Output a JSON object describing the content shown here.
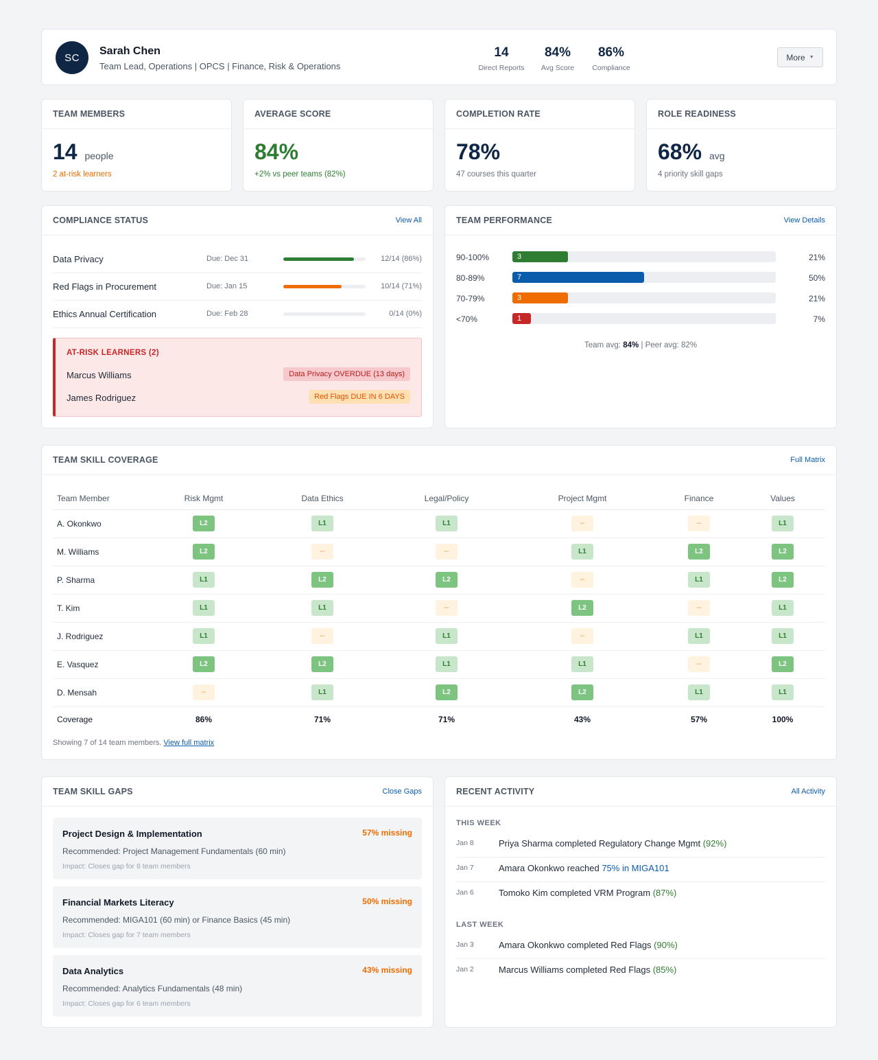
{
  "profile": {
    "initials": "SC",
    "name": "Sarah Chen",
    "role": "Team Lead, Operations | OPCS | Finance, Risk & Operations",
    "stats": [
      {
        "value": "14",
        "label": "Direct Reports"
      },
      {
        "value": "84%",
        "label": "Avg Score"
      },
      {
        "value": "86%",
        "label": "Compliance"
      }
    ],
    "more_label": "More",
    "more_caret": "▼"
  },
  "kpis": [
    {
      "title": "Team Members",
      "value": "14",
      "unit": "people",
      "sub": "2 at-risk learners",
      "value_color": "#0f2745",
      "sub_color": "#ef6c00"
    },
    {
      "title": "Average Score",
      "value": "84%",
      "unit": "",
      "sub": "+2% vs peer teams (82%)",
      "value_color": "#2e7d32",
      "sub_color": "#2e7d32"
    },
    {
      "title": "Completion Rate",
      "value": "78%",
      "unit": "",
      "sub": "47 courses this quarter",
      "value_color": "#0f2745",
      "sub_color": "#6b7280"
    },
    {
      "title": "Role Readiness",
      "value": "68%",
      "unit": "avg",
      "sub": "4 priority skill gaps",
      "value_color": "#0f2745",
      "sub_color": "#6b7280"
    }
  ],
  "compliance": {
    "title": "Compliance Status",
    "link": "View All",
    "items": [
      {
        "name": "Data Privacy",
        "due": "Due: Dec 31",
        "progress": 0.86,
        "count": "12/14 (86%)",
        "color": "#2e7d32"
      },
      {
        "name": "Red Flags in Procurement",
        "due": "Due: Jan 15",
        "progress": 0.71,
        "count": "10/14 (71%)",
        "color": "#ef6c00"
      },
      {
        "name": "Ethics Annual Certification",
        "due": "Due: Feb 28",
        "progress": 0,
        "count": "0/14 (0%)",
        "color": "#9ca3af"
      }
    ],
    "at_risk": {
      "title": "AT-RISK LEARNERS (2)",
      "learners": [
        {
          "name": "Marcus Williams",
          "badge": "Data Privacy OVERDUE (13 days)",
          "badge_bg": "#f8c9cc",
          "badge_color": "#b71c1c"
        },
        {
          "name": "James Rodriguez",
          "badge": "Red Flags DUE IN 6 DAYS",
          "badge_bg": "#ffe0b2",
          "badge_color": "#e65100"
        }
      ]
    }
  },
  "performance": {
    "title": "Team Performance",
    "link": "View Details",
    "bands": [
      {
        "label": "90-100%",
        "count": "3",
        "share": 0.21,
        "pct": "21%",
        "color": "#2e7d32"
      },
      {
        "label": "80-89%",
        "count": "7",
        "share": 0.5,
        "pct": "50%",
        "color": "#0b5cad"
      },
      {
        "label": "70-79%",
        "count": "3",
        "share": 0.21,
        "pct": "21%",
        "color": "#ef6c00"
      },
      {
        "label": "<70%",
        "count": "1",
        "share": 0.07,
        "pct": "7%",
        "color": "#c62828"
      }
    ],
    "team_avg_label": "Team avg:",
    "team_avg": "84%",
    "peer_avg": "| Peer avg: 82%"
  },
  "skills": {
    "title": "Team Skill Coverage",
    "link": "Full Matrix",
    "member_header": "Team Member",
    "columns": [
      "Risk Mgmt",
      "Data Ethics",
      "Legal/Policy",
      "Project Mgmt",
      "Finance",
      "Values"
    ],
    "rows": [
      {
        "member": "A. Okonkwo",
        "levels": [
          "L2",
          "L1",
          "L1",
          "--",
          "--",
          "L1"
        ]
      },
      {
        "member": "M. Williams",
        "levels": [
          "L2",
          "--",
          "--",
          "L1",
          "L2",
          "L2"
        ]
      },
      {
        "member": "P. Sharma",
        "levels": [
          "L1",
          "L2",
          "L2",
          "--",
          "L1",
          "L2"
        ]
      },
      {
        "member": "T. Kim",
        "levels": [
          "L1",
          "L1",
          "--",
          "L2",
          "--",
          "L1"
        ]
      },
      {
        "member": "J. Rodriguez",
        "levels": [
          "L1",
          "--",
          "L1",
          "--",
          "L1",
          "L1"
        ]
      },
      {
        "member": "E. Vasquez",
        "levels": [
          "L2",
          "L2",
          "L1",
          "L1",
          "--",
          "L2"
        ]
      },
      {
        "member": "D. Mensah",
        "levels": [
          "--",
          "L1",
          "L2",
          "L2",
          "L1",
          "L1"
        ]
      }
    ],
    "coverage_label": "Coverage",
    "coverage": [
      "86%",
      "71%",
      "71%",
      "43%",
      "57%",
      "100%"
    ],
    "footer_text": "Showing 7 of 14 team members.",
    "footer_link": "View full matrix"
  },
  "gaps": {
    "title": "Team Skill Gaps",
    "link": "Close Gaps",
    "items": [
      {
        "title": "Project Design & Implementation",
        "missing": "57% missing",
        "recommended": "Recommended: Project Management Fundamentals (60 min)",
        "impact": "Impact: Closes gap for 8 team members"
      },
      {
        "title": "Financial Markets Literacy",
        "missing": "50% missing",
        "recommended": "Recommended: MIGA101 (60 min) or Finance Basics (45 min)",
        "impact": "Impact: Closes gap for 7 team members"
      },
      {
        "title": "Data Analytics",
        "missing": "43% missing",
        "recommended": "Recommended: Analytics Fundamentals (48 min)",
        "impact": "Impact: Closes gap for 6 team members"
      }
    ]
  },
  "activity": {
    "title": "Recent Activity",
    "link": "All Activity",
    "sections": [
      {
        "label": "THIS WEEK",
        "items": [
          {
            "date": "Jan 8",
            "text": "Priya Sharma completed Regulatory Change Mgmt",
            "highlight": "(92%)",
            "hl_type": "score"
          },
          {
            "date": "Jan 7",
            "text": "Amara Okonkwo reached",
            "highlight": "75% in MIGA101",
            "hl_type": "progress"
          },
          {
            "date": "Jan 6",
            "text": "Tomoko Kim completed VRM Program",
            "highlight": "(87%)",
            "hl_type": "score"
          }
        ]
      },
      {
        "label": "LAST WEEK",
        "items": [
          {
            "date": "Jan 3",
            "text": "Amara Okonkwo completed Red Flags",
            "highlight": "(90%)",
            "hl_type": "score"
          },
          {
            "date": "Jan 2",
            "text": "Marcus Williams completed Red Flags",
            "highlight": "(85%)",
            "hl_type": "score"
          }
        ]
      }
    ]
  }
}
